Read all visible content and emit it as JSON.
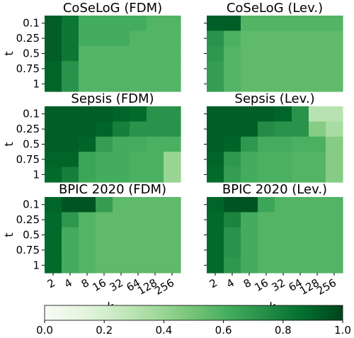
{
  "chart_data": {
    "type": "heatmap",
    "colormap": {
      "name": "Greens",
      "range": [
        0.0,
        1.0
      ],
      "low_color": "#f7fcf5",
      "high_color": "#00441b"
    },
    "colorbar": {
      "ticks": [
        "0.0",
        "0.2",
        "0.4",
        "0.6",
        "0.8",
        "1.0"
      ]
    },
    "x_ticks": [
      "2",
      "4",
      "8",
      "16",
      "32",
      "64",
      "128",
      "256"
    ],
    "y_ticks": [
      "0.1",
      "0.25",
      "0.5",
      "0.75",
      "1"
    ],
    "xlabel": "k",
    "ylabel": "t",
    "panels": [
      {
        "title": "CoSeLoG (FDM)",
        "row": 0,
        "col": 0,
        "values": [
          [
            0.92,
            0.83,
            0.62,
            0.62,
            0.62,
            0.62,
            0.58,
            0.58
          ],
          [
            0.92,
            0.83,
            0.62,
            0.62,
            0.62,
            0.58,
            0.58,
            0.58
          ],
          [
            0.92,
            0.83,
            0.58,
            0.58,
            0.58,
            0.58,
            0.58,
            0.58
          ],
          [
            0.9,
            0.72,
            0.58,
            0.58,
            0.58,
            0.58,
            0.58,
            0.58
          ],
          [
            0.9,
            0.72,
            0.58,
            0.58,
            0.58,
            0.58,
            0.58,
            0.58
          ]
        ]
      },
      {
        "title": "CoSeLoG (Lev.)",
        "row": 0,
        "col": 1,
        "values": [
          [
            0.92,
            0.92,
            0.58,
            0.58,
            0.58,
            0.58,
            0.58,
            0.58
          ],
          [
            0.72,
            0.6,
            0.55,
            0.55,
            0.55,
            0.55,
            0.55,
            0.55
          ],
          [
            0.7,
            0.58,
            0.55,
            0.55,
            0.55,
            0.55,
            0.55,
            0.55
          ],
          [
            0.68,
            0.58,
            0.55,
            0.55,
            0.55,
            0.55,
            0.55,
            0.55
          ],
          [
            0.68,
            0.58,
            0.55,
            0.55,
            0.55,
            0.55,
            0.55,
            0.55
          ]
        ]
      },
      {
        "title": "Sepsis (FDM)",
        "row": 1,
        "col": 0,
        "values": [
          [
            0.92,
            0.92,
            0.92,
            0.92,
            0.9,
            0.88,
            0.72,
            0.72
          ],
          [
            0.92,
            0.92,
            0.92,
            0.9,
            0.8,
            0.72,
            0.72,
            0.72
          ],
          [
            0.92,
            0.92,
            0.9,
            0.68,
            0.62,
            0.62,
            0.6,
            0.6
          ],
          [
            0.9,
            0.9,
            0.65,
            0.62,
            0.62,
            0.6,
            0.6,
            0.4
          ],
          [
            0.88,
            0.8,
            0.65,
            0.62,
            0.62,
            0.6,
            0.6,
            0.4
          ]
        ]
      },
      {
        "title": "Sepsis (Lev.)",
        "row": 1,
        "col": 1,
        "values": [
          [
            0.92,
            0.92,
            0.92,
            0.92,
            0.9,
            0.72,
            0.3,
            0.3
          ],
          [
            0.92,
            0.92,
            0.92,
            0.75,
            0.72,
            0.72,
            0.45,
            0.35
          ],
          [
            0.92,
            0.9,
            0.7,
            0.62,
            0.62,
            0.6,
            0.6,
            0.45
          ],
          [
            0.9,
            0.7,
            0.62,
            0.6,
            0.6,
            0.58,
            0.58,
            0.45
          ],
          [
            0.88,
            0.68,
            0.62,
            0.6,
            0.6,
            0.58,
            0.58,
            0.45
          ]
        ]
      },
      {
        "title": "BPIC 2020 (FDM)",
        "row": 2,
        "col": 0,
        "values": [
          [
            0.9,
            0.95,
            0.95,
            0.68,
            0.55,
            0.55,
            0.55,
            0.55
          ],
          [
            0.88,
            0.7,
            0.58,
            0.55,
            0.55,
            0.55,
            0.55,
            0.55
          ],
          [
            0.88,
            0.62,
            0.58,
            0.55,
            0.55,
            0.55,
            0.55,
            0.55
          ],
          [
            0.88,
            0.62,
            0.58,
            0.55,
            0.55,
            0.55,
            0.55,
            0.55
          ],
          [
            0.88,
            0.62,
            0.58,
            0.55,
            0.55,
            0.55,
            0.55,
            0.55
          ]
        ]
      },
      {
        "title": "BPIC 2020 (Lev.)",
        "row": 2,
        "col": 1,
        "values": [
          [
            0.9,
            0.95,
            0.95,
            0.65,
            0.58,
            0.58,
            0.58,
            0.58
          ],
          [
            0.88,
            0.78,
            0.62,
            0.58,
            0.58,
            0.58,
            0.58,
            0.58
          ],
          [
            0.88,
            0.72,
            0.62,
            0.58,
            0.58,
            0.58,
            0.58,
            0.58
          ],
          [
            0.88,
            0.72,
            0.62,
            0.58,
            0.58,
            0.58,
            0.58,
            0.58
          ],
          [
            0.88,
            0.7,
            0.62,
            0.58,
            0.58,
            0.58,
            0.58,
            0.58
          ]
        ]
      }
    ]
  }
}
